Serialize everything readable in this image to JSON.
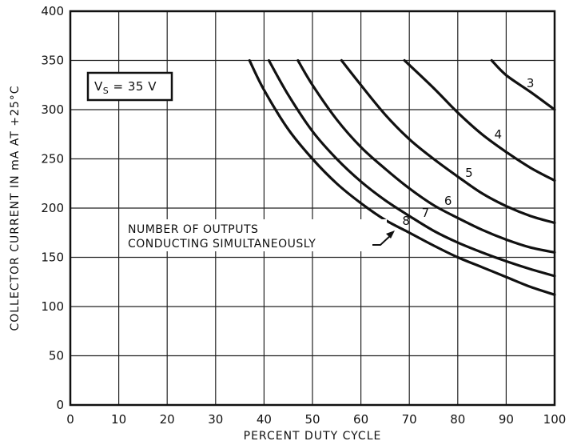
{
  "chart_data": {
    "type": "line",
    "xlabel": "PERCENT DUTY CYCLE",
    "ylabel": "COLLECTOR CURRENT IN mA AT +25°C",
    "xlim": [
      0,
      100
    ],
    "ylim": [
      0,
      400
    ],
    "x_ticks": [
      "0",
      "10",
      "20",
      "30",
      "40",
      "50",
      "60",
      "70",
      "80",
      "90",
      "100"
    ],
    "y_ticks": [
      "0",
      "50",
      "100",
      "150",
      "200",
      "250",
      "300",
      "350",
      "400"
    ],
    "grid": true,
    "condition_box": {
      "prefix": "V",
      "subscript": "S",
      "suffix": " = 35 V"
    },
    "annotation": {
      "line1": "NUMBER OF OUTPUTS",
      "line2": "CONDUCTING SIMULTANEOUSLY"
    },
    "series": [
      {
        "name": "3",
        "x": [
          87,
          90,
          95,
          100
        ],
        "y": [
          350,
          335,
          318,
          300
        ]
      },
      {
        "name": "4",
        "x": [
          69,
          75,
          80,
          85,
          90,
          95,
          100
        ],
        "y": [
          350,
          322,
          297,
          275,
          257,
          241,
          228
        ]
      },
      {
        "name": "5",
        "x": [
          56,
          60,
          65,
          70,
          75,
          80,
          85,
          90,
          95,
          100
        ],
        "y": [
          350,
          325,
          295,
          270,
          250,
          232,
          215,
          202,
          192,
          185
        ]
      },
      {
        "name": "6",
        "x": [
          47,
          50,
          55,
          60,
          65,
          70,
          75,
          80,
          85,
          90,
          95,
          100
        ],
        "y": [
          350,
          325,
          290,
          262,
          240,
          220,
          203,
          190,
          178,
          168,
          160,
          155
        ]
      },
      {
        "name": "7",
        "x": [
          41,
          45,
          50,
          55,
          60,
          65,
          70,
          75,
          80,
          85,
          90,
          95,
          100
        ],
        "y": [
          350,
          315,
          278,
          250,
          227,
          208,
          192,
          177,
          165,
          155,
          146,
          138,
          131
        ]
      },
      {
        "name": "8",
        "x": [
          37,
          40,
          45,
          50,
          55,
          60,
          65,
          70,
          75,
          80,
          85,
          90,
          95,
          100
        ],
        "y": [
          350,
          320,
          280,
          250,
          225,
          205,
          188,
          175,
          162,
          150,
          140,
          130,
          120,
          112
        ]
      }
    ]
  }
}
